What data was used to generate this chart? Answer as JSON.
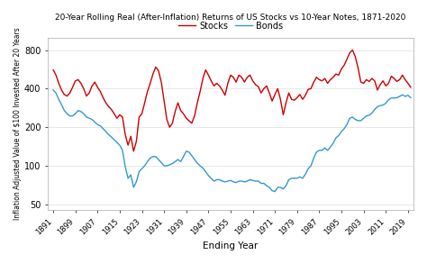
{
  "title": "20-Year Rolling Real (After-Inflation) Returns of US Stocks vs 10-Year Notes, 1871-2020",
  "xlabel": "Ending Year",
  "ylabel": "Inflation Adjusted Value of $100 Invested After 20 Years",
  "legend_stocks": "Stocks",
  "legend_bonds": "Bonds",
  "stocks_color": "#cc0000",
  "bonds_color": "#3399cc",
  "background_color": "#ffffff",
  "xticks": [
    1891,
    1899,
    1907,
    1915,
    1923,
    1931,
    1939,
    1947,
    1955,
    1963,
    1971,
    1979,
    1987,
    1995,
    2003,
    2011,
    2019
  ],
  "yticks": [
    50,
    100,
    200,
    400,
    800
  ],
  "xlim": [
    1889,
    2021
  ],
  "ylim": [
    45,
    1000
  ],
  "stocks_y": [
    560,
    510,
    440,
    390,
    360,
    350,
    370,
    410,
    460,
    470,
    440,
    400,
    350,
    370,
    420,
    450,
    410,
    380,
    340,
    310,
    290,
    275,
    255,
    235,
    250,
    240,
    175,
    145,
    170,
    130,
    155,
    240,
    255,
    310,
    380,
    440,
    520,
    590,
    550,
    450,
    320,
    230,
    200,
    215,
    265,
    310,
    270,
    255,
    235,
    225,
    215,
    245,
    310,
    380,
    480,
    560,
    510,
    460,
    420,
    440,
    420,
    390,
    355,
    440,
    510,
    490,
    450,
    510,
    490,
    450,
    490,
    510,
    460,
    430,
    415,
    370,
    400,
    420,
    370,
    320,
    360,
    400,
    330,
    250,
    310,
    370,
    330,
    325,
    340,
    360,
    330,
    355,
    395,
    400,
    450,
    490,
    470,
    460,
    480,
    440,
    470,
    490,
    520,
    510,
    570,
    610,
    680,
    760,
    800,
    710,
    580,
    450,
    440,
    470,
    455,
    480,
    460,
    390,
    430,
    460,
    420,
    440,
    500,
    480,
    455,
    470,
    510,
    470,
    440,
    410
  ],
  "bonds_y": [
    390,
    370,
    330,
    300,
    270,
    255,
    245,
    245,
    255,
    270,
    265,
    255,
    240,
    235,
    230,
    220,
    210,
    205,
    195,
    185,
    175,
    168,
    160,
    152,
    145,
    132,
    98,
    80,
    85,
    68,
    75,
    90,
    95,
    100,
    108,
    115,
    118,
    118,
    112,
    106,
    100,
    100,
    102,
    104,
    108,
    112,
    108,
    118,
    130,
    128,
    120,
    112,
    105,
    100,
    96,
    90,
    84,
    80,
    76,
    78,
    78,
    76,
    75,
    76,
    77,
    75,
    74,
    76,
    76,
    75,
    76,
    78,
    77,
    76,
    76,
    73,
    73,
    70,
    68,
    64,
    63,
    68,
    68,
    66,
    70,
    78,
    80,
    80,
    80,
    82,
    80,
    86,
    95,
    100,
    115,
    128,
    132,
    132,
    138,
    132,
    140,
    150,
    165,
    172,
    185,
    195,
    210,
    235,
    240,
    230,
    225,
    225,
    235,
    245,
    248,
    258,
    275,
    290,
    295,
    298,
    308,
    328,
    338,
    338,
    340,
    348,
    358,
    348,
    355,
    340
  ]
}
